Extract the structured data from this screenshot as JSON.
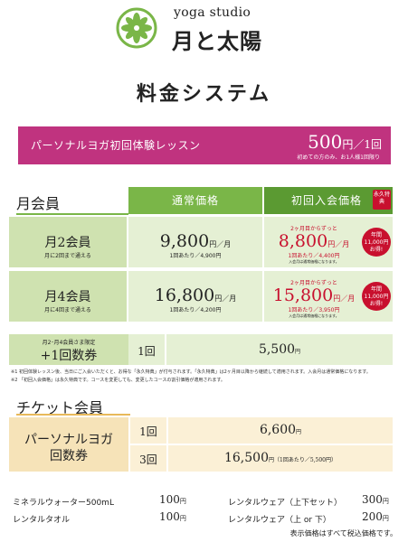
{
  "header": {
    "studio": "yoga studio",
    "brand": "月と太陽",
    "title": "料金システム"
  },
  "trial": {
    "label": "パーソナルヨガ初回体験レッスン",
    "price": "500",
    "unit": "円／1回",
    "note": "初めての方のみ、お1人様1回限り"
  },
  "membership": {
    "heading": "月会員",
    "col_regular": "通常価格",
    "col_first": "初回入会価格",
    "eitoku": "永久特典",
    "plans": [
      {
        "name": "月2会員",
        "sub": "月に2回まで通える",
        "regular_price": "9,800",
        "regular_unit": "円／月",
        "regular_per": "1回あたり／4,900円",
        "first_lead": "2ヶ月目からずっと",
        "first_price": "8,800",
        "first_unit": "円／月",
        "first_per": "1回あたり／4,400円",
        "first_note": "入会月は通常価格になります。",
        "badge": "年間11,000円お得!"
      },
      {
        "name": "月4会員",
        "sub": "月に4回まで通える",
        "regular_price": "16,800",
        "regular_unit": "円／月",
        "regular_per": "1回あたり／4,200円",
        "first_lead": "2ヶ月目からずっと",
        "first_price": "15,800",
        "first_unit": "円／月",
        "first_per": "1回あたり／3,950円",
        "first_note": "入会月は通常価格になります。",
        "badge": "年間11,000円お得!"
      }
    ],
    "extra_top": "月2･月4会員さま限定",
    "extra_name": "+1回数券",
    "extra_count": "1回",
    "extra_price": "5,500",
    "extra_unit": "円"
  },
  "notes": [
    "※1 初回体験レッスン後、当日にご入会いただくと、お得な「永久特典」が付与されます。「永久特典」は2ヶ月目以降から継続して適用されます。入会月は通常価格になります。",
    "※2 「初回入会価格」は永久特典です。コースを変更しても、変更したコースの割引価格が適用されます。"
  ],
  "ticket": {
    "heading": "チケット会員",
    "name_line1": "パーソナルヨガ",
    "name_line2": "回数券",
    "rows": [
      {
        "count": "1回",
        "price": "6,600",
        "unit": "円",
        "per": ""
      },
      {
        "count": "3回",
        "price": "16,500",
        "unit": "円",
        "per": "（1回あたり／5,500円）"
      }
    ]
  },
  "options": [
    {
      "label": "ミネラルウォーター500mL",
      "price": "100",
      "unit": "円"
    },
    {
      "label": "レンタルタオル",
      "price": "100",
      "unit": "円"
    },
    {
      "label": "レンタルウェア（上下セット）",
      "price": "300",
      "unit": "円"
    },
    {
      "label": "レンタルウェア（上 or 下）",
      "price": "200",
      "unit": "円"
    }
  ],
  "footer": "表示価格はすべて税込価格です。",
  "colors": {
    "green": "#7ab648",
    "pink": "#c0337f",
    "red": "#c8102e",
    "cream": "#f6e3b8"
  }
}
